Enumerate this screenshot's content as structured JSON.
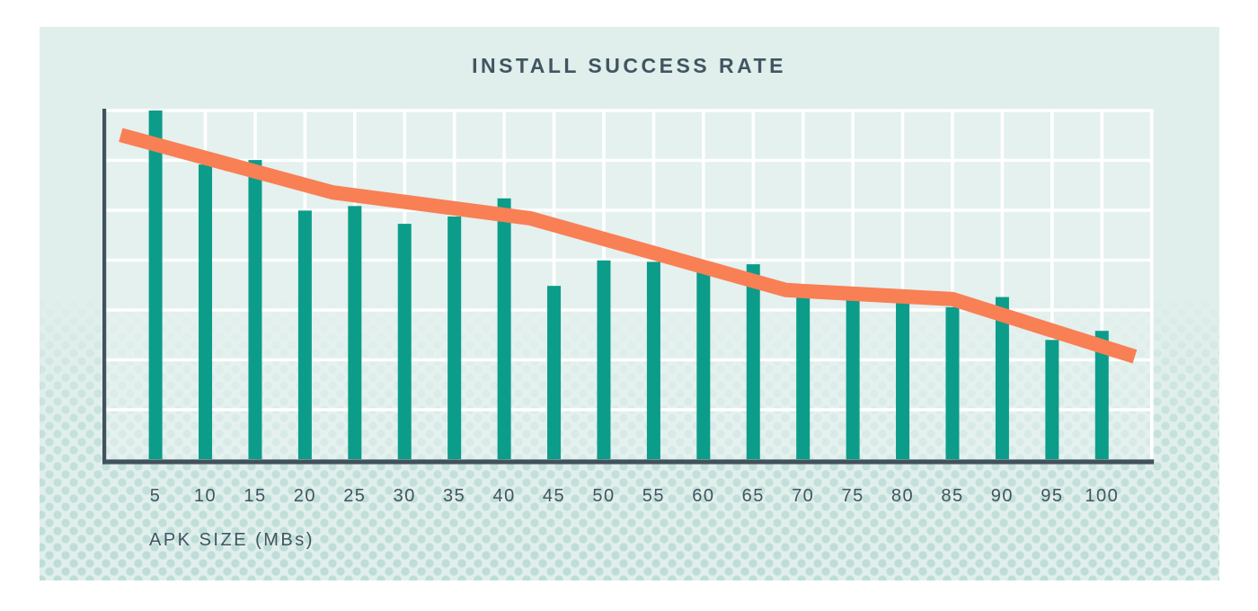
{
  "chart": {
    "title": "INSTALL SUCCESS RATE",
    "x_axis_label": "APK SIZE (MBs)"
  },
  "colors": {
    "page_background": "#ffffff",
    "card_background": "#e0efec",
    "grid_area_tint": "#e7f3f1",
    "grid_line": "#ffffff",
    "bar": "#0c9c8a",
    "trend_line": "#f97f55",
    "axis": "#42525c",
    "text": "#415561",
    "dot_pattern": "#8cc4b9"
  },
  "chart_data": {
    "type": "bar",
    "title": "INSTALL SUCCESS RATE",
    "xlabel": "APK SIZE (MBs)",
    "ylabel": "",
    "categories": [
      "5",
      "10",
      "15",
      "20",
      "25",
      "30",
      "35",
      "40",
      "45",
      "50",
      "55",
      "60",
      "65",
      "70",
      "75",
      "80",
      "85",
      "90",
      "95",
      "100"
    ],
    "values": [
      100.0,
      84.5,
      85.8,
      71.3,
      72.6,
      67.5,
      69.6,
      74.8,
      49.7,
      57.0,
      56.6,
      53.9,
      55.9,
      48.5,
      47.1,
      46.2,
      43.6,
      46.5,
      34.2,
      36.8
    ],
    "series": [
      {
        "name": "install-success-rate-bars",
        "type": "bar",
        "values": [
          100.0,
          84.5,
          85.8,
          71.3,
          72.6,
          67.5,
          69.6,
          74.8,
          49.7,
          57.0,
          56.6,
          53.9,
          55.9,
          48.5,
          47.1,
          46.2,
          43.6,
          46.5,
          34.2,
          36.8
        ]
      },
      {
        "name": "trend-line",
        "type": "line",
        "points": [
          {
            "x_mb": 1.5,
            "y": 93.0
          },
          {
            "x_mb": 22.8,
            "y": 76.5
          },
          {
            "x_mb": 42.6,
            "y": 69.1
          },
          {
            "x_mb": 68.3,
            "y": 48.5
          },
          {
            "x_mb": 85.0,
            "y": 45.9
          },
          {
            "x_mb": 103.3,
            "y": 29.4
          }
        ]
      }
    ],
    "ylim": [
      0,
      100
    ],
    "y_axis_labels_visible": false,
    "grid": true,
    "legend_position": "none",
    "note": "No y-axis tick labels are shown in the image; y values are estimated relative to the top gridline (tallest bar = 100)."
  }
}
